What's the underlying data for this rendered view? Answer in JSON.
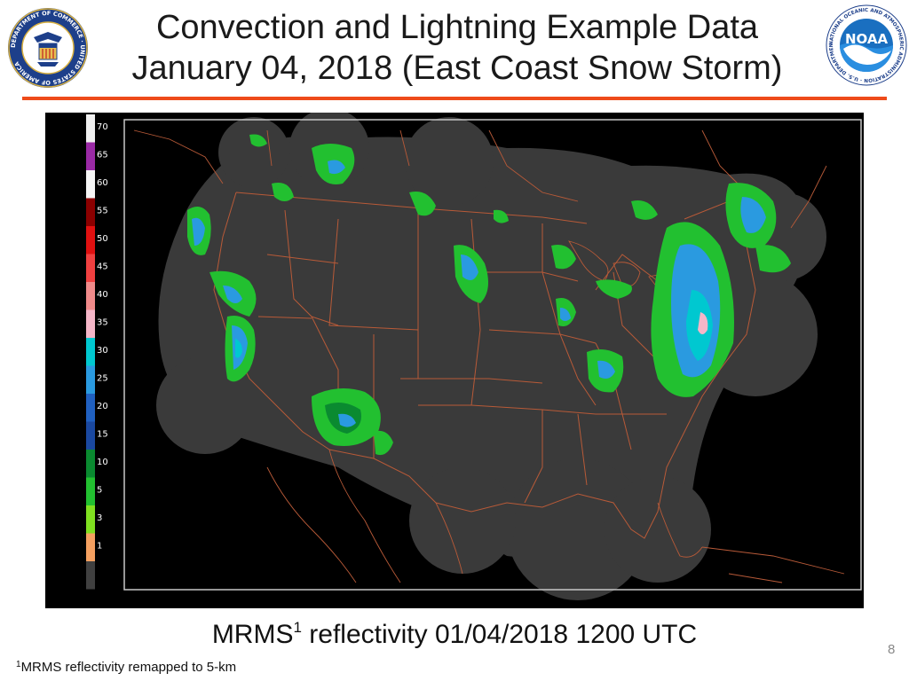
{
  "title": {
    "line1": "Convection and Lightning Example Data",
    "line2": "January 04, 2018 (East Coast Snow Storm)"
  },
  "logos": {
    "left": {
      "icon": "doc-seal-icon",
      "text": "DEPARTMENT OF COMMERCE · UNITED STATES OF AMERICA"
    },
    "right": {
      "icon": "noaa-logo-icon",
      "text": "NOAA",
      "ring_text": "NATIONAL OCEANIC AND ATMOSPHERIC ADMINISTRATION · U.S. DEPARTMENT OF COMMERCE"
    }
  },
  "map": {
    "legend": [
      {
        "label": "70",
        "color": "#f0f0f0"
      },
      {
        "label": "65",
        "color": "#9a2aa5"
      },
      {
        "label": "60",
        "color": "#f5f5f5"
      },
      {
        "label": "55",
        "color": "#8b0000"
      },
      {
        "label": "50",
        "color": "#e01010"
      },
      {
        "label": "45",
        "color": "#f04040"
      },
      {
        "label": "40",
        "color": "#f08a8a"
      },
      {
        "label": "35",
        "color": "#f5b6c8"
      },
      {
        "label": "30",
        "color": "#00c8d0"
      },
      {
        "label": "25",
        "color": "#2a9ae0"
      },
      {
        "label": "20",
        "color": "#2060c0"
      },
      {
        "label": "15",
        "color": "#1a48a0"
      },
      {
        "label": "10",
        "color": "#0a8a30"
      },
      {
        "label": "5",
        "color": "#22c030"
      },
      {
        "label": "3",
        "color": "#80e020"
      },
      {
        "label": "1",
        "color": "#f5a060"
      },
      {
        "label": "",
        "color": "#404040"
      }
    ],
    "colors": {
      "background": "#000000",
      "coverage": "#3a3a3a",
      "borders": "#b85a38",
      "frame": "#c8c8c8"
    }
  },
  "caption": {
    "prefix": "MRMS",
    "sup": "1",
    "rest": " reflectivity 01/04/2018 1200 UTC"
  },
  "footnote": {
    "sup": "1",
    "text": "MRMS reflectivity remapped to 5-km"
  },
  "page_number": "8"
}
